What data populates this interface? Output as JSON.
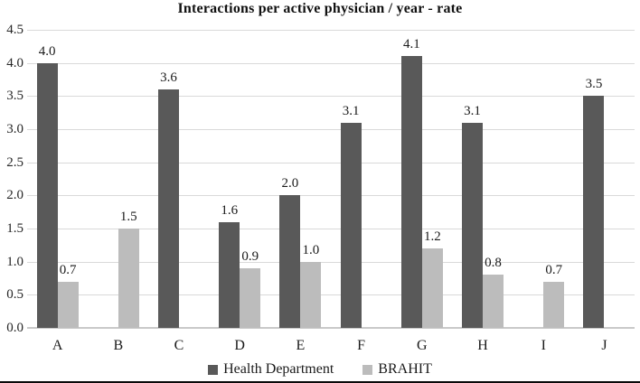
{
  "chart_data": {
    "type": "bar",
    "title": "Interactions per active physician / year - rate",
    "xlabel": "",
    "ylabel": "",
    "categories": [
      "A",
      "B",
      "C",
      "D",
      "E",
      "F",
      "G",
      "H",
      "I",
      "J"
    ],
    "series": [
      {
        "name": "Health Department",
        "color": "#595959",
        "values": [
          4.0,
          null,
          3.6,
          1.6,
          2.0,
          3.1,
          4.1,
          3.1,
          null,
          3.5
        ],
        "labels": [
          "4.0",
          "",
          "3.6",
          "1.6",
          "2.0",
          "3.1",
          "4.1",
          "3.1",
          "",
          "3.5"
        ]
      },
      {
        "name": "BRAHIT",
        "color": "#bcbcbc",
        "values": [
          0.7,
          1.5,
          null,
          0.9,
          1.0,
          null,
          1.2,
          0.8,
          0.7,
          null
        ],
        "labels": [
          "0.7",
          "1.5",
          "",
          "0.9",
          "1.0",
          "",
          "1.2",
          "0.8",
          "0.7",
          ""
        ]
      }
    ],
    "ylim": [
      0,
      4.5
    ],
    "ytick_step": 0.5,
    "yticks": [
      "4.5",
      "4.0",
      "3.5",
      "3.0",
      "2.5",
      "2.0",
      "1.5",
      "1.0",
      "0.5",
      "0.0"
    ],
    "grid": true,
    "gridline_color": "#d9d9d9",
    "legend_position": "bottom"
  }
}
